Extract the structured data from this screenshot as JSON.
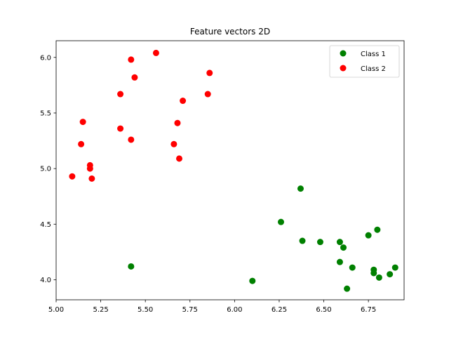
{
  "chart_data": {
    "type": "scatter",
    "title": "Feature vectors 2D",
    "xlabel": "",
    "ylabel": "",
    "xlim": [
      5.0,
      6.95
    ],
    "ylim": [
      3.82,
      6.15
    ],
    "xticks": [
      "5.00",
      "5.25",
      "5.50",
      "5.75",
      "6.00",
      "6.25",
      "6.50",
      "6.75"
    ],
    "yticks": [
      "4.0",
      "4.5",
      "5.0",
      "5.5",
      "6.0"
    ],
    "grid": false,
    "legend_position": "top-right",
    "series": [
      {
        "name": "Class 1",
        "color": "#008000",
        "points": [
          [
            5.42,
            4.12
          ],
          [
            6.1,
            3.99
          ],
          [
            6.26,
            4.52
          ],
          [
            6.37,
            4.82
          ],
          [
            6.38,
            4.35
          ],
          [
            6.48,
            4.34
          ],
          [
            6.59,
            4.34
          ],
          [
            6.61,
            4.29
          ],
          [
            6.59,
            4.16
          ],
          [
            6.66,
            4.11
          ],
          [
            6.63,
            3.92
          ],
          [
            6.75,
            4.4
          ],
          [
            6.8,
            4.45
          ],
          [
            6.78,
            4.09
          ],
          [
            6.78,
            4.06
          ],
          [
            6.81,
            4.02
          ],
          [
            6.87,
            4.05
          ],
          [
            6.9,
            4.11
          ]
        ]
      },
      {
        "name": "Class 2",
        "color": "#ff0000",
        "points": [
          [
            5.09,
            4.93
          ],
          [
            5.19,
            5.0
          ],
          [
            5.19,
            5.03
          ],
          [
            5.2,
            4.91
          ],
          [
            5.14,
            5.22
          ],
          [
            5.15,
            5.42
          ],
          [
            5.36,
            5.36
          ],
          [
            5.36,
            5.67
          ],
          [
            5.42,
            5.26
          ],
          [
            5.42,
            5.98
          ],
          [
            5.44,
            5.82
          ],
          [
            5.56,
            6.04
          ],
          [
            5.66,
            5.22
          ],
          [
            5.68,
            5.41
          ],
          [
            5.69,
            5.09
          ],
          [
            5.71,
            5.61
          ],
          [
            5.85,
            5.67
          ],
          [
            5.86,
            5.86
          ]
        ]
      }
    ]
  }
}
